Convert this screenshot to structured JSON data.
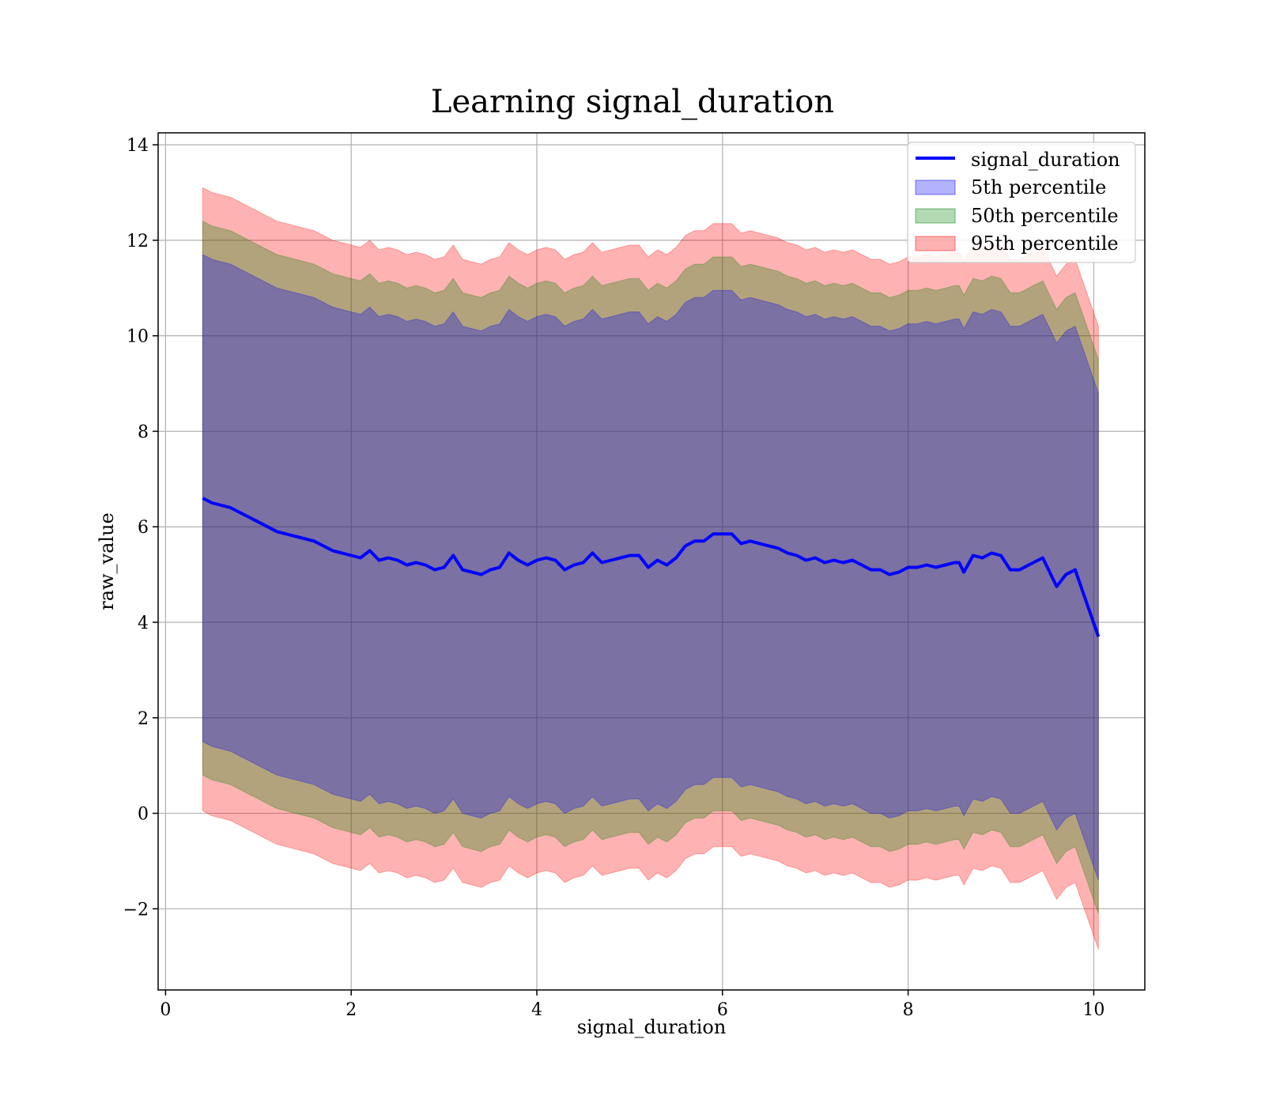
{
  "chart_data": {
    "type": "line",
    "title": "Learning signal_duration",
    "xlabel": "signal_duration",
    "ylabel": "raw_value",
    "xlim": [
      -0.08,
      10.55
    ],
    "ylim": [
      -3.7,
      14.25
    ],
    "xticks": [
      0,
      2,
      4,
      6,
      8,
      10
    ],
    "yticks": [
      -2,
      0,
      2,
      4,
      6,
      8,
      10,
      12,
      14
    ],
    "xtick_labels": [
      "0",
      "2",
      "4",
      "6",
      "8",
      "10"
    ],
    "ytick_labels": [
      "−2",
      "0",
      "2",
      "4",
      "6",
      "8",
      "10",
      "12",
      "14"
    ],
    "grid": true,
    "legend_position": "top-right",
    "colors": {
      "line": "#0000ff",
      "band_5": "#0000ff",
      "band_50": "#008000",
      "band_95": "#ff0000",
      "band_5_alpha": 0.3,
      "band_50_alpha": 0.3,
      "band_95_alpha": 0.3
    },
    "legend": [
      {
        "label": "signal_duration",
        "kind": "line",
        "color": "#0000ff"
      },
      {
        "label": "5th percentile",
        "kind": "patch",
        "color": "#0000ff"
      },
      {
        "label": "50th percentile",
        "kind": "patch",
        "color": "#008000"
      },
      {
        "label": "95th percentile",
        "kind": "patch",
        "color": "#ff0000"
      }
    ],
    "x": [
      0.4,
      0.5,
      0.6,
      0.7,
      0.8,
      0.9,
      1.0,
      1.1,
      1.2,
      1.3,
      1.4,
      1.5,
      1.6,
      1.7,
      1.8,
      1.9,
      2.0,
      2.1,
      2.2,
      2.3,
      2.4,
      2.5,
      2.6,
      2.7,
      2.8,
      2.9,
      3.0,
      3.1,
      3.2,
      3.3,
      3.4,
      3.5,
      3.6,
      3.7,
      3.8,
      3.9,
      4.0,
      4.1,
      4.2,
      4.3,
      4.4,
      4.5,
      4.6,
      4.7,
      4.8,
      4.9,
      5.0,
      5.1,
      5.2,
      5.3,
      5.4,
      5.5,
      5.6,
      5.7,
      5.8,
      5.9,
      6.0,
      6.1,
      6.2,
      6.3,
      6.4,
      6.5,
      6.6,
      6.7,
      6.8,
      6.9,
      7.0,
      7.1,
      7.2,
      7.3,
      7.4,
      7.5,
      7.6,
      7.7,
      7.8,
      7.9,
      8.0,
      8.1,
      8.2,
      8.3,
      8.4,
      8.5,
      8.55,
      8.6,
      8.7,
      8.8,
      8.9,
      9.0,
      9.1,
      9.2,
      9.3,
      9.45,
      9.6,
      9.7,
      9.8,
      10.05
    ],
    "series": [
      {
        "name": "signal_duration",
        "role": "line",
        "values": [
          6.6,
          6.5,
          6.45,
          6.4,
          6.3,
          6.2,
          6.1,
          6.0,
          5.9,
          5.85,
          5.8,
          5.75,
          5.7,
          5.6,
          5.5,
          5.45,
          5.4,
          5.35,
          5.5,
          5.3,
          5.35,
          5.3,
          5.2,
          5.25,
          5.2,
          5.1,
          5.15,
          5.4,
          5.1,
          5.05,
          5.0,
          5.1,
          5.15,
          5.45,
          5.3,
          5.2,
          5.3,
          5.35,
          5.3,
          5.1,
          5.2,
          5.25,
          5.45,
          5.25,
          5.3,
          5.35,
          5.4,
          5.4,
          5.15,
          5.3,
          5.2,
          5.35,
          5.6,
          5.7,
          5.7,
          5.85,
          5.85,
          5.85,
          5.65,
          5.7,
          5.65,
          5.6,
          5.55,
          5.45,
          5.4,
          5.3,
          5.35,
          5.25,
          5.3,
          5.25,
          5.3,
          5.2,
          5.1,
          5.1,
          5.0,
          5.05,
          5.15,
          5.15,
          5.2,
          5.15,
          5.2,
          5.25,
          5.25,
          5.05,
          5.4,
          5.35,
          5.45,
          5.4,
          5.1,
          5.1,
          5.2,
          5.35,
          4.75,
          5.0,
          5.1,
          3.7
        ]
      },
      {
        "name": "5th percentile",
        "role": "band",
        "lower": [
          1.5,
          1.4,
          1.35,
          1.3,
          1.2,
          1.1,
          1.0,
          0.9,
          0.8,
          0.75,
          0.7,
          0.65,
          0.6,
          0.5,
          0.4,
          0.35,
          0.3,
          0.25,
          0.4,
          0.2,
          0.25,
          0.2,
          0.1,
          0.15,
          0.1,
          0.0,
          0.05,
          0.3,
          0.0,
          -0.05,
          -0.1,
          0.0,
          0.05,
          0.35,
          0.2,
          0.1,
          0.2,
          0.25,
          0.2,
          0.0,
          0.1,
          0.15,
          0.35,
          0.15,
          0.2,
          0.25,
          0.3,
          0.3,
          0.05,
          0.2,
          0.1,
          0.25,
          0.5,
          0.6,
          0.6,
          0.75,
          0.75,
          0.75,
          0.55,
          0.6,
          0.55,
          0.5,
          0.45,
          0.35,
          0.3,
          0.2,
          0.25,
          0.15,
          0.2,
          0.15,
          0.2,
          0.1,
          0.0,
          0.0,
          -0.1,
          -0.05,
          0.05,
          0.05,
          0.1,
          0.05,
          0.1,
          0.15,
          0.15,
          -0.05,
          0.3,
          0.25,
          0.35,
          0.3,
          0.0,
          0.0,
          0.1,
          0.25,
          -0.35,
          -0.1,
          0.0,
          -1.4
        ],
        "upper": [
          11.7,
          11.6,
          11.55,
          11.5,
          11.4,
          11.3,
          11.2,
          11.1,
          11.0,
          10.95,
          10.9,
          10.85,
          10.8,
          10.7,
          10.6,
          10.55,
          10.5,
          10.45,
          10.6,
          10.4,
          10.45,
          10.4,
          10.3,
          10.35,
          10.3,
          10.2,
          10.25,
          10.5,
          10.2,
          10.15,
          10.1,
          10.2,
          10.25,
          10.55,
          10.4,
          10.3,
          10.4,
          10.45,
          10.4,
          10.2,
          10.3,
          10.35,
          10.55,
          10.35,
          10.4,
          10.45,
          10.5,
          10.5,
          10.25,
          10.4,
          10.3,
          10.45,
          10.7,
          10.8,
          10.8,
          10.95,
          10.95,
          10.95,
          10.75,
          10.8,
          10.75,
          10.7,
          10.65,
          10.55,
          10.5,
          10.4,
          10.45,
          10.35,
          10.4,
          10.35,
          10.4,
          10.3,
          10.2,
          10.2,
          10.1,
          10.15,
          10.25,
          10.25,
          10.3,
          10.25,
          10.3,
          10.35,
          10.35,
          10.15,
          10.5,
          10.45,
          10.55,
          10.5,
          10.2,
          10.2,
          10.3,
          10.45,
          9.85,
          10.1,
          10.2,
          8.8
        ]
      },
      {
        "name": "50th percentile",
        "role": "band",
        "lower": [
          0.8,
          0.7,
          0.65,
          0.6,
          0.5,
          0.4,
          0.3,
          0.2,
          0.1,
          0.05,
          0.0,
          -0.05,
          -0.1,
          -0.2,
          -0.3,
          -0.35,
          -0.4,
          -0.45,
          -0.3,
          -0.5,
          -0.45,
          -0.5,
          -0.6,
          -0.55,
          -0.6,
          -0.7,
          -0.65,
          -0.4,
          -0.7,
          -0.75,
          -0.8,
          -0.7,
          -0.65,
          -0.35,
          -0.5,
          -0.6,
          -0.5,
          -0.45,
          -0.5,
          -0.7,
          -0.6,
          -0.55,
          -0.35,
          -0.55,
          -0.5,
          -0.45,
          -0.4,
          -0.4,
          -0.65,
          -0.5,
          -0.6,
          -0.45,
          -0.2,
          -0.1,
          -0.1,
          0.05,
          0.05,
          0.05,
          -0.15,
          -0.1,
          -0.15,
          -0.2,
          -0.25,
          -0.35,
          -0.4,
          -0.5,
          -0.45,
          -0.55,
          -0.5,
          -0.55,
          -0.5,
          -0.6,
          -0.7,
          -0.7,
          -0.8,
          -0.75,
          -0.65,
          -0.65,
          -0.6,
          -0.65,
          -0.6,
          -0.55,
          -0.55,
          -0.75,
          -0.4,
          -0.45,
          -0.35,
          -0.4,
          -0.7,
          -0.7,
          -0.6,
          -0.45,
          -1.05,
          -0.8,
          -0.7,
          -2.1
        ],
        "upper": [
          12.4,
          12.3,
          12.25,
          12.2,
          12.1,
          12.0,
          11.9,
          11.8,
          11.7,
          11.65,
          11.6,
          11.55,
          11.5,
          11.4,
          11.3,
          11.25,
          11.2,
          11.15,
          11.3,
          11.1,
          11.15,
          11.1,
          11.0,
          11.05,
          11.0,
          10.9,
          10.95,
          11.2,
          10.9,
          10.85,
          10.8,
          10.9,
          10.95,
          11.25,
          11.1,
          11.0,
          11.1,
          11.15,
          11.1,
          10.9,
          11.0,
          11.05,
          11.25,
          11.05,
          11.1,
          11.15,
          11.2,
          11.2,
          10.95,
          11.1,
          11.0,
          11.15,
          11.4,
          11.5,
          11.5,
          11.65,
          11.65,
          11.65,
          11.45,
          11.5,
          11.45,
          11.4,
          11.35,
          11.25,
          11.2,
          11.1,
          11.15,
          11.05,
          11.1,
          11.05,
          11.1,
          11.0,
          10.9,
          10.9,
          10.8,
          10.85,
          10.95,
          10.95,
          11.0,
          10.95,
          11.0,
          11.05,
          11.05,
          10.85,
          11.2,
          11.15,
          11.25,
          11.2,
          10.9,
          10.9,
          11.0,
          11.15,
          10.55,
          10.8,
          10.9,
          9.5
        ]
      },
      {
        "name": "95th percentile",
        "role": "band",
        "lower": [
          0.05,
          -0.05,
          -0.1,
          -0.15,
          -0.25,
          -0.35,
          -0.45,
          -0.55,
          -0.65,
          -0.7,
          -0.75,
          -0.8,
          -0.85,
          -0.95,
          -1.05,
          -1.1,
          -1.15,
          -1.2,
          -1.05,
          -1.25,
          -1.2,
          -1.25,
          -1.35,
          -1.3,
          -1.35,
          -1.45,
          -1.4,
          -1.15,
          -1.45,
          -1.5,
          -1.55,
          -1.45,
          -1.4,
          -1.1,
          -1.25,
          -1.35,
          -1.25,
          -1.2,
          -1.25,
          -1.45,
          -1.35,
          -1.3,
          -1.1,
          -1.3,
          -1.25,
          -1.2,
          -1.15,
          -1.15,
          -1.4,
          -1.25,
          -1.35,
          -1.2,
          -0.95,
          -0.85,
          -0.85,
          -0.7,
          -0.7,
          -0.7,
          -0.9,
          -0.85,
          -0.9,
          -0.95,
          -1.0,
          -1.1,
          -1.15,
          -1.25,
          -1.2,
          -1.3,
          -1.25,
          -1.3,
          -1.25,
          -1.35,
          -1.45,
          -1.45,
          -1.55,
          -1.5,
          -1.4,
          -1.4,
          -1.35,
          -1.4,
          -1.35,
          -1.3,
          -1.3,
          -1.5,
          -1.15,
          -1.2,
          -1.1,
          -1.15,
          -1.45,
          -1.45,
          -1.35,
          -1.2,
          -1.8,
          -1.55,
          -1.45,
          -2.85
        ],
        "upper": [
          13.1,
          13.0,
          12.95,
          12.9,
          12.8,
          12.7,
          12.6,
          12.5,
          12.4,
          12.35,
          12.3,
          12.25,
          12.2,
          12.1,
          12.0,
          11.95,
          11.9,
          11.85,
          12.0,
          11.8,
          11.85,
          11.8,
          11.7,
          11.75,
          11.7,
          11.6,
          11.65,
          11.9,
          11.6,
          11.55,
          11.5,
          11.6,
          11.65,
          11.95,
          11.8,
          11.7,
          11.8,
          11.85,
          11.8,
          11.6,
          11.7,
          11.75,
          11.95,
          11.75,
          11.8,
          11.85,
          11.9,
          11.9,
          11.65,
          11.8,
          11.7,
          11.85,
          12.1,
          12.2,
          12.2,
          12.35,
          12.35,
          12.35,
          12.15,
          12.2,
          12.15,
          12.1,
          12.05,
          11.95,
          11.9,
          11.8,
          11.85,
          11.75,
          11.8,
          11.75,
          11.8,
          11.7,
          11.6,
          11.6,
          11.5,
          11.55,
          11.65,
          11.65,
          11.7,
          11.65,
          11.7,
          11.75,
          11.75,
          11.55,
          11.9,
          11.85,
          11.95,
          11.9,
          11.6,
          11.6,
          11.7,
          11.85,
          11.25,
          11.5,
          11.6,
          10.2
        ]
      }
    ]
  }
}
